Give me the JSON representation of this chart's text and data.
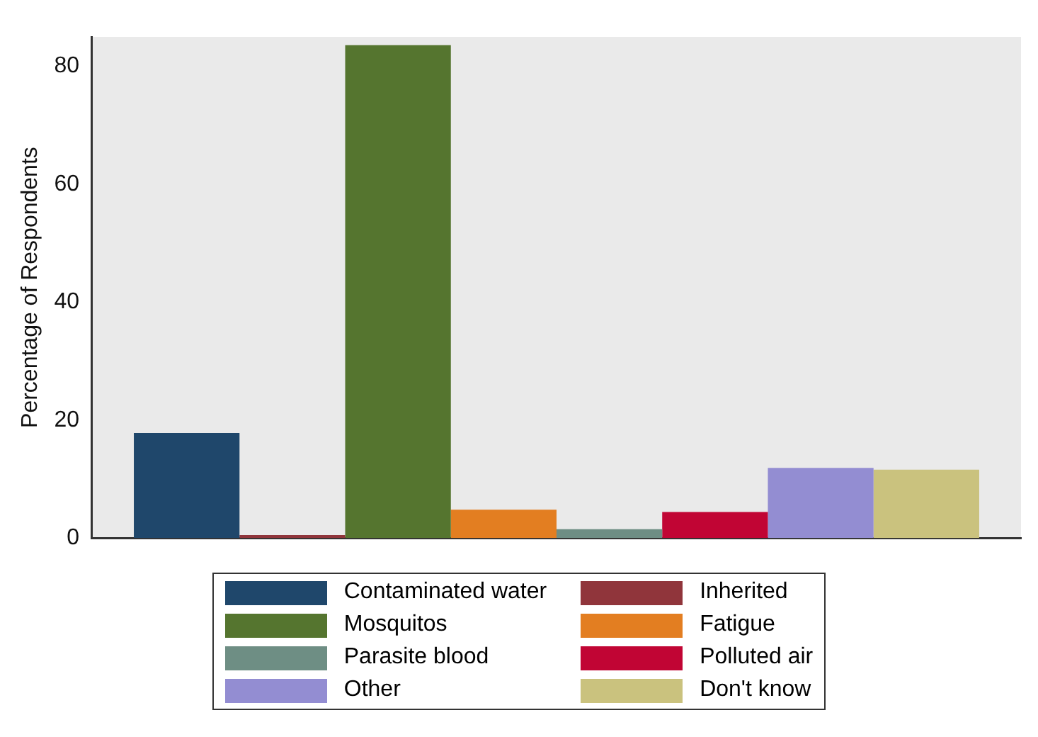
{
  "chart_data": {
    "type": "bar",
    "ylabel": "Percentage of Respondents",
    "categories": [
      null
    ],
    "ylim": [
      0,
      85
    ],
    "yticks": [
      0,
      20,
      40,
      60,
      80
    ],
    "grid": false,
    "legend": "bottom",
    "series": [
      {
        "name": "Contaminated water",
        "color": "#1f476b",
        "values": [
          17.8
        ]
      },
      {
        "name": "Inherited",
        "color": "#90353b",
        "values": [
          0.5
        ]
      },
      {
        "name": "Mosquitos",
        "color": "#55752f",
        "values": [
          83.6
        ]
      },
      {
        "name": "Fatigue",
        "color": "#e37e21",
        "values": [
          4.8
        ]
      },
      {
        "name": "Parasite blood",
        "color": "#6e8e84",
        "values": [
          1.5
        ]
      },
      {
        "name": "Polluted air",
        "color": "#c10534",
        "values": [
          4.4
        ]
      },
      {
        "name": "Other",
        "color": "#938dd2",
        "values": [
          11.9
        ]
      },
      {
        "name": "Don't know",
        "color": "#cac27e",
        "values": [
          11.6
        ]
      }
    ]
  }
}
